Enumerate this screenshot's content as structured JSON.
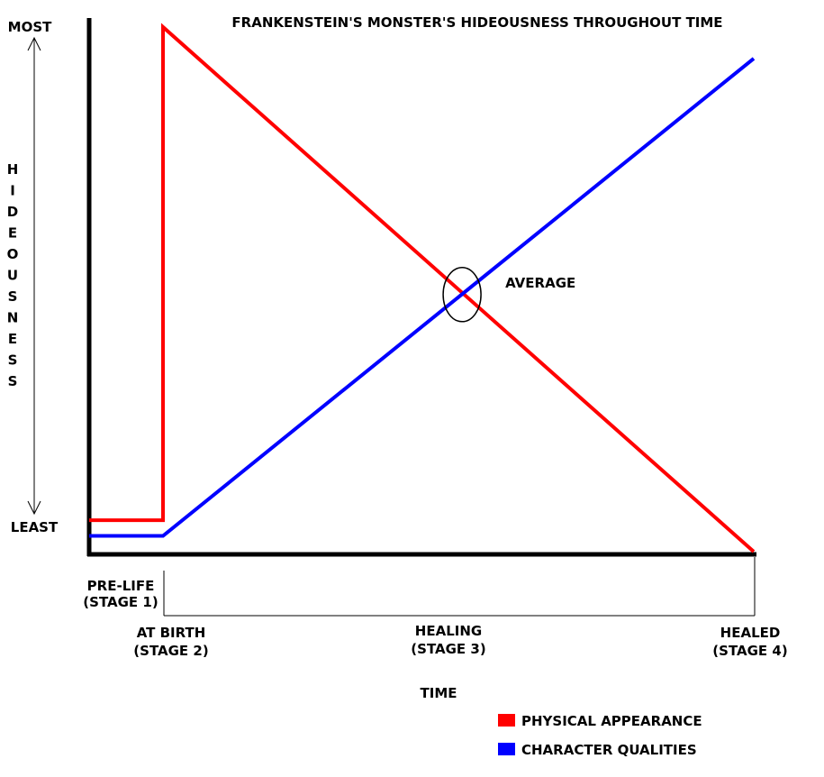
{
  "chart_data": {
    "type": "line",
    "title": "FRANKENSTEIN'S MONSTER'S HIDEOUSNESS THROUGHOUT TIME",
    "ylabel": "HIDEOUSNESS",
    "y_top_label": "MOST",
    "y_bottom_label": "LEAST",
    "xlabel": "TIME",
    "ylim": [
      0,
      100
    ],
    "stages": [
      {
        "line1": "PRE-LIFE",
        "line2": "(STAGE 1)",
        "x": 0
      },
      {
        "line1": "AT BIRTH",
        "line2": "(STAGE 2)",
        "x": 1
      },
      {
        "line1": "HEALING",
        "line2": "(STAGE 3)",
        "x": 5
      },
      {
        "line1": "HEALED",
        "line2": "(STAGE 4)",
        "x": 9
      }
    ],
    "xlim": [
      0,
      9
    ],
    "series": [
      {
        "name": "PHYSICAL APPEARANCE",
        "color": "#ff0000",
        "points": [
          [
            0,
            6
          ],
          [
            1,
            6
          ],
          [
            1,
            100
          ],
          [
            9,
            0
          ]
        ]
      },
      {
        "name": "CHARACTER QUALITIES",
        "color": "#0000ff",
        "points": [
          [
            0,
            3
          ],
          [
            1,
            3
          ],
          [
            9,
            94
          ]
        ]
      }
    ],
    "annotation": {
      "text": "AVERAGE",
      "x": 5.05,
      "y": 49
    },
    "legend_position": "bottom-right"
  }
}
